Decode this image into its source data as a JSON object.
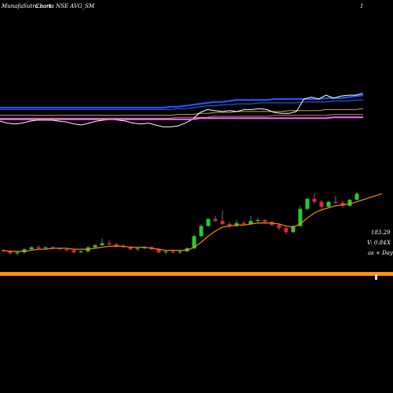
{
  "header": {
    "title": "MunafaSutra.com",
    "subtitle": "Charts NSE AVG_SM",
    "marker": "1"
  },
  "side_labels": {
    "price": "183.29",
    "volume": "V: 0.84",
    "volume_unit": "X",
    "period": "as  +  Days"
  },
  "colors": {
    "background": "#000000",
    "up": "#22cc33",
    "down": "#ee2233",
    "ma": "#ff8800",
    "band_upper": "#2255ff",
    "band_lower": "#ffffff",
    "pivot": "#ff66ff",
    "volume_bar": "#ff8800"
  },
  "chart_data": [
    {
      "type": "candlestick",
      "title": "",
      "series": [
        {
          "name": "price",
          "values": [
            {
              "o": 124,
              "h": 125,
              "l": 122,
              "c": 123
            },
            {
              "o": 123,
              "h": 124,
              "l": 120,
              "c": 121
            },
            {
              "o": 121,
              "h": 123,
              "l": 119,
              "c": 122
            },
            {
              "o": 122,
              "h": 126,
              "l": 121,
              "c": 125
            },
            {
              "o": 125,
              "h": 128,
              "l": 124,
              "c": 127
            },
            {
              "o": 127,
              "h": 129,
              "l": 125,
              "c": 126
            },
            {
              "o": 126,
              "h": 128,
              "l": 125,
              "c": 127
            },
            {
              "o": 127,
              "h": 128,
              "l": 125,
              "c": 126
            },
            {
              "o": 126,
              "h": 127,
              "l": 124,
              "c": 125
            },
            {
              "o": 125,
              "h": 126,
              "l": 123,
              "c": 124
            },
            {
              "o": 124,
              "h": 125,
              "l": 121,
              "c": 122
            },
            {
              "o": 122,
              "h": 124,
              "l": 121,
              "c": 123
            },
            {
              "o": 123,
              "h": 128,
              "l": 122,
              "c": 127
            },
            {
              "o": 127,
              "h": 130,
              "l": 126,
              "c": 129
            },
            {
              "o": 129,
              "h": 136,
              "l": 128,
              "c": 131
            },
            {
              "o": 131,
              "h": 134,
              "l": 129,
              "c": 130
            },
            {
              "o": 130,
              "h": 131,
              "l": 127,
              "c": 128
            },
            {
              "o": 128,
              "h": 130,
              "l": 126,
              "c": 127
            },
            {
              "o": 127,
              "h": 128,
              "l": 124,
              "c": 125
            },
            {
              "o": 125,
              "h": 127,
              "l": 123,
              "c": 126
            },
            {
              "o": 126,
              "h": 128,
              "l": 125,
              "c": 127
            },
            {
              "o": 127,
              "h": 128,
              "l": 124,
              "c": 125
            },
            {
              "o": 125,
              "h": 126,
              "l": 121,
              "c": 122
            },
            {
              "o": 122,
              "h": 124,
              "l": 120,
              "c": 123
            },
            {
              "o": 123,
              "h": 125,
              "l": 121,
              "c": 122
            },
            {
              "o": 122,
              "h": 124,
              "l": 120,
              "c": 123
            },
            {
              "o": 123,
              "h": 127,
              "l": 122,
              "c": 126
            },
            {
              "o": 126,
              "h": 140,
              "l": 125,
              "c": 138
            },
            {
              "o": 138,
              "h": 150,
              "l": 137,
              "c": 148
            },
            {
              "o": 148,
              "h": 156,
              "l": 147,
              "c": 155
            },
            {
              "o": 155,
              "h": 158,
              "l": 152,
              "c": 153
            },
            {
              "o": 153,
              "h": 163,
              "l": 149,
              "c": 150
            },
            {
              "o": 150,
              "h": 152,
              "l": 146,
              "c": 148
            },
            {
              "o": 148,
              "h": 154,
              "l": 147,
              "c": 151
            },
            {
              "o": 151,
              "h": 153,
              "l": 148,
              "c": 150
            },
            {
              "o": 150,
              "h": 158,
              "l": 149,
              "c": 153
            },
            {
              "o": 153,
              "h": 156,
              "l": 151,
              "c": 154
            },
            {
              "o": 154,
              "h": 155,
              "l": 151,
              "c": 152
            },
            {
              "o": 152,
              "h": 153,
              "l": 148,
              "c": 149
            },
            {
              "o": 149,
              "h": 150,
              "l": 144,
              "c": 146
            },
            {
              "o": 146,
              "h": 148,
              "l": 140,
              "c": 142
            },
            {
              "o": 142,
              "h": 149,
              "l": 141,
              "c": 148
            },
            {
              "o": 148,
              "h": 168,
              "l": 147,
              "c": 165
            },
            {
              "o": 165,
              "h": 176,
              "l": 163,
              "c": 175
            },
            {
              "o": 175,
              "h": 180,
              "l": 170,
              "c": 172
            },
            {
              "o": 172,
              "h": 174,
              "l": 165,
              "c": 167
            },
            {
              "o": 167,
              "h": 173,
              "l": 166,
              "c": 172
            },
            {
              "o": 172,
              "h": 178,
              "l": 170,
              "c": 171
            },
            {
              "o": 171,
              "h": 173,
              "l": 166,
              "c": 168
            },
            {
              "o": 168,
              "h": 175,
              "l": 167,
              "c": 174
            },
            {
              "o": 174,
              "h": 182,
              "l": 173,
              "c": 180
            }
          ]
        },
        {
          "name": "moving-average",
          "values": [
            124,
            123,
            123,
            123,
            124,
            125,
            125,
            126,
            126,
            126,
            125,
            125,
            125,
            126,
            127,
            128,
            128,
            128,
            127,
            127,
            127,
            126,
            125,
            124,
            124,
            124,
            124,
            127,
            132,
            138,
            143,
            147,
            148,
            149,
            149,
            150,
            151,
            151,
            151,
            150,
            148,
            147,
            150,
            156,
            161,
            164,
            166,
            168,
            169,
            170,
            172
          ]
        }
      ],
      "last_price": 183.29,
      "ma_extension": 180
    },
    {
      "type": "line",
      "title": "",
      "series": [
        {
          "name": "band-upper",
          "values": [
            82,
            82,
            82,
            82,
            82,
            82,
            82,
            82,
            82,
            82,
            82,
            82,
            82,
            82,
            82,
            82,
            82,
            82,
            82,
            82,
            82,
            82,
            82,
            83,
            83,
            84,
            85,
            86,
            87,
            88,
            88,
            89,
            90,
            90,
            90,
            90,
            90,
            91,
            91,
            91,
            91,
            91,
            91,
            91,
            92,
            92,
            92,
            93,
            94,
            95
          ]
        },
        {
          "name": "band-upper-2",
          "values": [
            80,
            80,
            80,
            80,
            80,
            80,
            80,
            80,
            80,
            80,
            80,
            80,
            80,
            80,
            80,
            80,
            80,
            80,
            80,
            80,
            80,
            80,
            80,
            80,
            81,
            81,
            82,
            83,
            84,
            84,
            85,
            85,
            86,
            86,
            86,
            87,
            87,
            87,
            87,
            87,
            87,
            88,
            88,
            88,
            88,
            89,
            89,
            89,
            90,
            90
          ]
        },
        {
          "name": "ma-mid",
          "values": [
            74,
            74,
            74,
            74,
            74,
            74,
            74,
            74,
            74,
            74,
            74,
            74,
            74,
            74,
            74,
            74,
            74,
            74,
            74,
            74,
            74,
            74,
            74,
            74,
            75,
            75,
            75,
            76,
            76,
            77,
            77,
            77,
            78,
            78,
            78,
            78,
            78,
            78,
            78,
            79,
            79,
            79,
            79,
            79,
            80,
            80,
            80,
            80,
            80,
            81
          ]
        },
        {
          "name": "ma-slow",
          "values": [
            71,
            71,
            71,
            71,
            71,
            71,
            71,
            71,
            71,
            71,
            71,
            71,
            71,
            71,
            71,
            71,
            71,
            71,
            71,
            71,
            71,
            71,
            71,
            71,
            72,
            72,
            72,
            72,
            72,
            73,
            73,
            73,
            73,
            73,
            73,
            73,
            73,
            74,
            74,
            74,
            74,
            74,
            74,
            74,
            74,
            75,
            75,
            75,
            75,
            75
          ]
        },
        {
          "name": "price-line",
          "values": [
            68,
            66,
            65,
            66,
            68,
            69,
            69,
            69,
            68,
            67,
            65,
            64,
            66,
            68,
            69,
            70,
            69,
            68,
            66,
            65,
            66,
            64,
            62,
            62,
            63,
            66,
            70,
            77,
            80,
            79,
            78,
            79,
            78,
            80,
            80,
            81,
            80,
            77,
            76,
            76,
            78,
            91,
            93,
            91,
            95,
            92,
            94,
            95,
            95,
            97
          ]
        },
        {
          "name": "pivot",
          "values": [
            70,
            70,
            70,
            70,
            70,
            70,
            70,
            70,
            70,
            70,
            70,
            70,
            70,
            70,
            70,
            70,
            70,
            70,
            70,
            70,
            70,
            70,
            70,
            70,
            70,
            70,
            70,
            71,
            71,
            71,
            71,
            71,
            71,
            71,
            71,
            71,
            71,
            71,
            71,
            71,
            71,
            71,
            71,
            71,
            71,
            72,
            72,
            72,
            72,
            72
          ]
        }
      ]
    }
  ]
}
